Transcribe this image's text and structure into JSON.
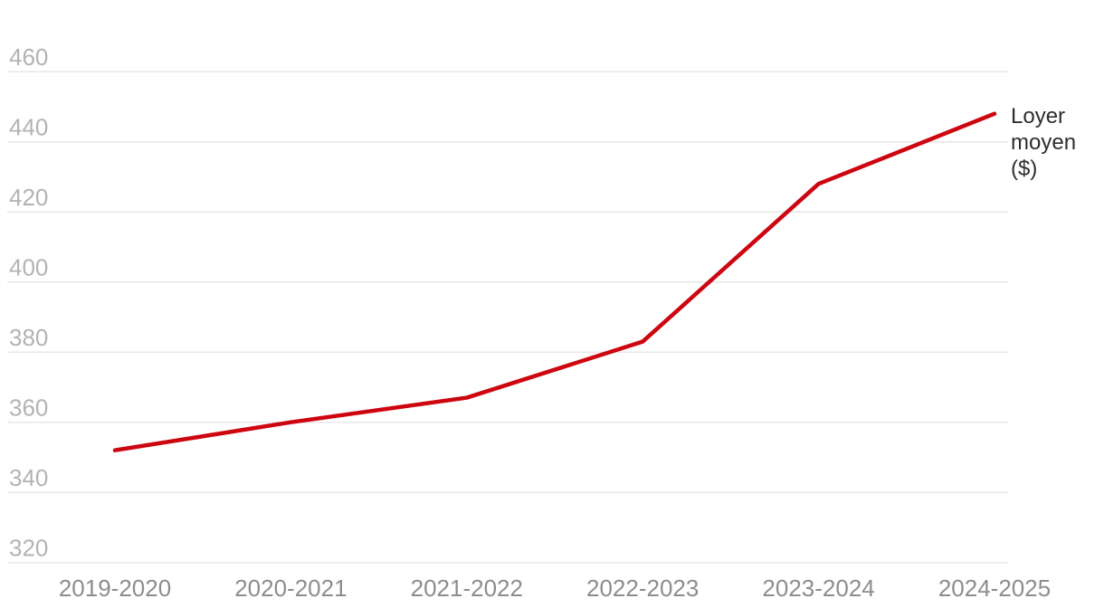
{
  "chart_data": {
    "type": "line",
    "title": "",
    "xlabel": "",
    "ylabel": "Loyer moyen ($)",
    "categories": [
      "2019-2020",
      "2020-2021",
      "2021-2022",
      "2022-2023",
      "2023-2024",
      "2024-2025"
    ],
    "series": [
      {
        "name": "Loyer moyen ($)",
        "values": [
          352,
          360,
          367,
          383,
          428,
          448
        ],
        "color": "#cd050f"
      }
    ],
    "y_ticks": [
      460,
      440,
      420,
      400,
      380,
      360,
      340,
      320
    ],
    "ylim": [
      320,
      460
    ],
    "grid": "horizontal-only",
    "legend_position": "right-of-line-end",
    "colors": {
      "line": "#cd050f",
      "gridline": "#e7e7e7",
      "y_tick_text": "#b3b3b3",
      "x_tick_text": "#8d8d8d",
      "series_label_text": "#2e2e2e",
      "background": "#ffffff"
    }
  }
}
